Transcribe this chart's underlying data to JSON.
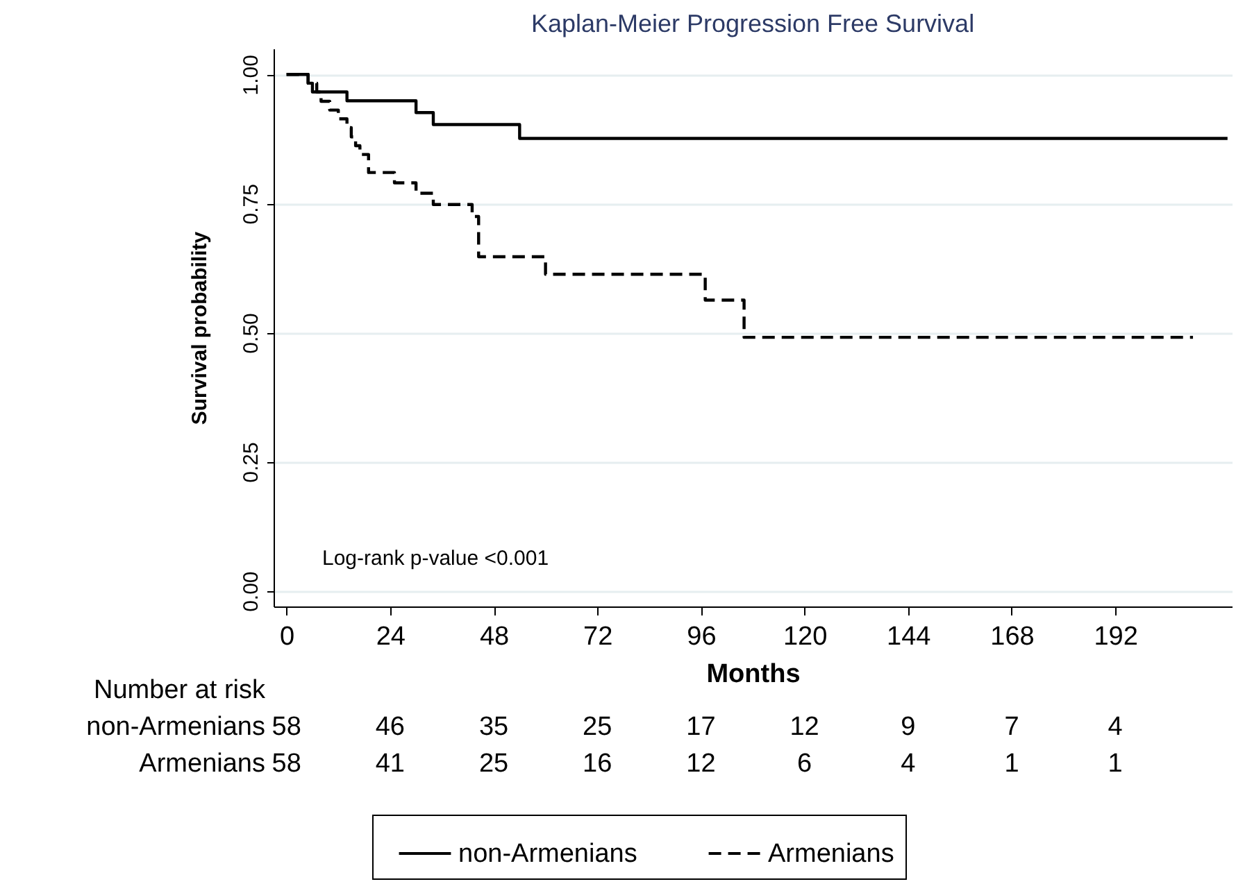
{
  "chart_data": {
    "type": "step",
    "title": "Kaplan-Meier Progression Free Survival",
    "xlabel": "Months",
    "ylabel": "Survival probability",
    "series": [
      {
        "name": "non-Armenians",
        "color": "#000000",
        "line_style": "solid",
        "x": [
          0,
          5,
          6,
          14,
          30,
          34,
          54,
          218
        ],
        "values": [
          1,
          0.983,
          0.966,
          0.949,
          0.926,
          0.903,
          0.876,
          0.876
        ]
      },
      {
        "name": "Armenians",
        "color": "#000000",
        "line_style": "dashed",
        "x": [
          0,
          5,
          7,
          8,
          10,
          12,
          14,
          15,
          16,
          17,
          19,
          25,
          30,
          34,
          43,
          44.5,
          60,
          97,
          106,
          210
        ],
        "values": [
          1,
          0.983,
          0.966,
          0.948,
          0.931,
          0.914,
          0.897,
          0.879,
          0.862,
          0.845,
          0.81,
          0.79,
          0.77,
          0.748,
          0.725,
          0.647,
          0.613,
          0.563,
          0.491,
          0.491
        ]
      }
    ],
    "xlim": [
      -3,
      219
    ],
    "xticks": [
      0,
      24,
      48,
      72,
      96,
      120,
      144,
      168,
      192
    ],
    "ylim": [
      -0.03,
      1.05
    ],
    "yticks": [
      {
        "value": 0,
        "label": "0.00"
      },
      {
        "value": 0.25,
        "label": "0.25"
      },
      {
        "value": 0.5,
        "label": "0.50"
      },
      {
        "value": 0.75,
        "label": "0.75"
      },
      {
        "value": 1,
        "label": "1.00"
      }
    ],
    "grid": "y",
    "legend": "bottom",
    "annotations": [
      "Log-rank p-value <0.001",
      "Number at risk",
      "non-Armenians",
      "58",
      "46",
      "35",
      "25",
      "17",
      "12",
      "9",
      "7",
      "4",
      "Armenians",
      "58",
      "41",
      "25",
      "16",
      "12",
      "6",
      "4",
      "1",
      "1"
    ]
  }
}
